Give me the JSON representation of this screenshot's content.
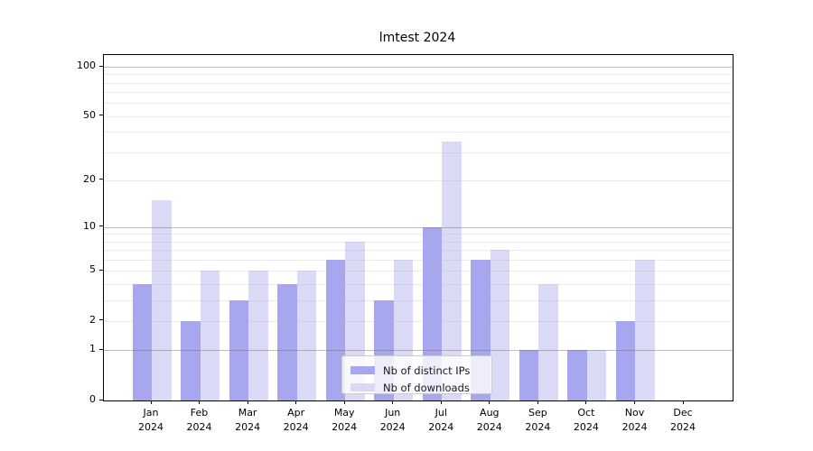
{
  "title": "lmtest 2024",
  "legend": {
    "items": [
      {
        "label": "Nb of distinct IPs",
        "color": "#a7a7ef"
      },
      {
        "label": "Nb of downloads",
        "color": "#dadaf7"
      }
    ]
  },
  "chart_data": {
    "type": "bar",
    "title": "lmtest 2024",
    "categories": [
      "Jan 2024",
      "Feb 2024",
      "Mar 2024",
      "Apr 2024",
      "May 2024",
      "Jun 2024",
      "Jul 2024",
      "Aug 2024",
      "Sep 2024",
      "Oct 2024",
      "Nov 2024",
      "Dec 2024"
    ],
    "series": [
      {
        "name": "Nb of distinct IPs",
        "color": "#a7a7ef",
        "values": [
          4,
          2,
          3,
          4,
          6,
          3,
          10,
          6,
          1,
          1,
          2,
          0
        ]
      },
      {
        "name": "Nb of downloads",
        "color": "#dadaf7",
        "values": [
          15,
          5,
          5,
          5,
          8,
          6,
          35,
          7,
          4,
          1,
          6,
          0
        ]
      }
    ],
    "xlabel": "",
    "ylabel": "",
    "yscale": "log1p",
    "yticks": [
      0,
      1,
      2,
      5,
      10,
      20,
      50,
      100
    ],
    "minor_grid_values": [
      2,
      3,
      4,
      5,
      6,
      7,
      8,
      9,
      20,
      30,
      40,
      50,
      60,
      70,
      80,
      90
    ],
    "major_grid_values": [
      1,
      10,
      100
    ],
    "ylim": [
      0,
      118
    ],
    "grid": true,
    "legend_position": "lower-center",
    "major_grid_color": "#b3b3b3",
    "minor_grid_color": "#ebebeb",
    "axis_color": "#000000"
  }
}
